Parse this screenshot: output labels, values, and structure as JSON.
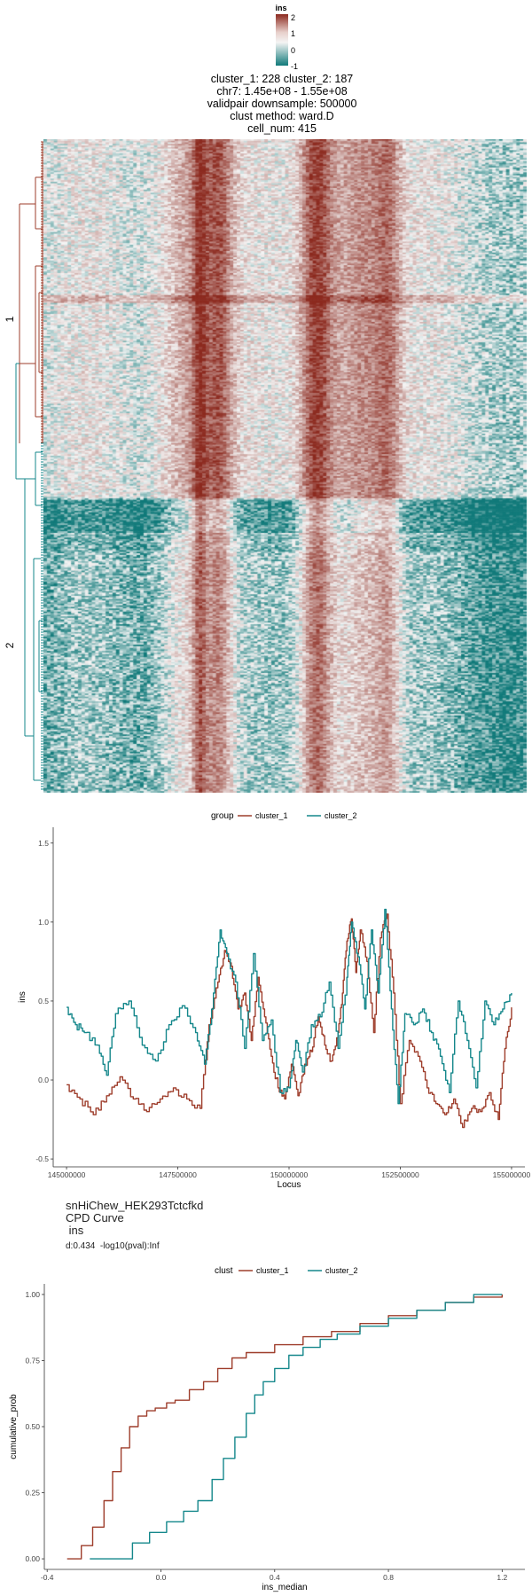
{
  "colors": {
    "cluster_1": "#9e3d2b",
    "cluster_2": "#14878b",
    "heat_low": "#117a7a",
    "heat_mid": "#f4f4f4",
    "heat_high": "#8c2a1f"
  },
  "heatmap": {
    "legend_title": "ins",
    "legend_ticks": [
      "2",
      "1",
      "0",
      "-1"
    ],
    "title_lines": [
      "cluster_1: 228 cluster_2: 187",
      "chr7: 1.45e+08 - 1.55e+08",
      "validpair downsample: 500000",
      "clust method: ward.D",
      "cell_num: 415"
    ],
    "row_groups": [
      "1",
      "2"
    ]
  },
  "chart_data": [
    {
      "type": "line",
      "xlabel": "Locus",
      "ylabel": "ins",
      "legend_title": "group",
      "legend_position": "top",
      "xlim": [
        144700000,
        155300000
      ],
      "ylim": [
        -0.55,
        1.6
      ],
      "x_ticks": [
        "145000000",
        "147500000",
        "150000000",
        "152500000",
        "155000000"
      ],
      "y_ticks": [
        "-0.5",
        "0.0",
        "0.5",
        "1.0",
        "1.5"
      ],
      "series": [
        {
          "name": "cluster_1",
          "x": [
            145000000,
            145300000,
            145600000,
            145900000,
            146200000,
            146500000,
            146800000,
            147100000,
            147400000,
            147700000,
            148000000,
            148200000,
            148400000,
            148550000,
            148700000,
            148850000,
            149000000,
            149150000,
            149300000,
            149450000,
            149600000,
            149750000,
            149900000,
            150050000,
            150200000,
            150350000,
            150500000,
            150650000,
            150800000,
            150950000,
            151100000,
            151200000,
            151300000,
            151400000,
            151500000,
            151600000,
            151750000,
            151900000,
            152050000,
            152200000,
            152350000,
            152500000,
            152700000,
            152900000,
            153100000,
            153300000,
            153500000,
            153700000,
            153900000,
            154100000,
            154300000,
            154500000,
            154700000,
            154850000,
            155000000
          ],
          "y": [
            -0.03,
            -0.12,
            -0.22,
            -0.1,
            0.02,
            -0.12,
            -0.2,
            -0.12,
            -0.05,
            -0.12,
            -0.18,
            0.35,
            0.62,
            0.82,
            0.72,
            0.45,
            0.55,
            0.25,
            0.65,
            0.4,
            0.15,
            -0.05,
            -0.12,
            0.1,
            -0.1,
            0.1,
            0.18,
            0.4,
            0.22,
            0.12,
            0.3,
            0.55,
            0.88,
            1.02,
            0.68,
            0.95,
            0.75,
            0.3,
            0.9,
            1.05,
            0.55,
            -0.15,
            0.25,
            0.15,
            -0.05,
            -0.15,
            -0.22,
            -0.12,
            -0.3,
            -0.18,
            -0.2,
            -0.08,
            -0.25,
            0.2,
            0.46
          ]
        },
        {
          "name": "cluster_2",
          "x": [
            145000000,
            145200000,
            145400000,
            145700000,
            145900000,
            146100000,
            146400000,
            146700000,
            147000000,
            147300000,
            147600000,
            147900000,
            148100000,
            148300000,
            148450000,
            148600000,
            148800000,
            149000000,
            149200000,
            149400000,
            149600000,
            149800000,
            150000000,
            150150000,
            150300000,
            150500000,
            150700000,
            150900000,
            151100000,
            151300000,
            151400000,
            151550000,
            151700000,
            151850000,
            152000000,
            152150000,
            152300000,
            152450000,
            152600000,
            152800000,
            153000000,
            153200000,
            153400000,
            153600000,
            153800000,
            154000000,
            154200000,
            154400000,
            154600000,
            154800000,
            155000000
          ],
          "y": [
            0.46,
            0.35,
            0.3,
            0.22,
            0.03,
            0.42,
            0.5,
            0.22,
            0.12,
            0.35,
            0.47,
            0.3,
            0.1,
            0.55,
            0.95,
            0.8,
            0.62,
            0.2,
            0.8,
            0.25,
            0.38,
            -0.08,
            -0.05,
            0.25,
            0.05,
            0.35,
            0.4,
            0.62,
            0.2,
            0.65,
            1.0,
            0.78,
            0.45,
            0.95,
            0.55,
            1.08,
            0.45,
            -0.15,
            0.42,
            0.35,
            0.45,
            0.3,
            0.15,
            -0.08,
            0.5,
            0.25,
            -0.05,
            0.5,
            0.35,
            0.45,
            0.55
          ]
        }
      ]
    },
    {
      "type": "line",
      "title": "snHiChew_HEK293Tctcfkd",
      "subtitle_lines": [
        "CPD Curve",
        " ins"
      ],
      "stats": "d:0.434  -log10(pval):Inf",
      "xlabel": "ins_median",
      "ylabel": "cumulative_prob",
      "legend_title": "clust",
      "legend_position": "top",
      "xlim": [
        -0.41,
        1.28
      ],
      "ylim": [
        -0.04,
        1.04
      ],
      "x_ticks": [
        "-0.4",
        "0.0",
        "0.4",
        "0.8",
        "1.2"
      ],
      "y_ticks": [
        "0.00",
        "0.25",
        "0.50",
        "0.75",
        "1.00"
      ],
      "series": [
        {
          "name": "cluster_1",
          "x": [
            -0.33,
            -0.28,
            -0.24,
            -0.2,
            -0.17,
            -0.14,
            -0.11,
            -0.08,
            -0.05,
            -0.02,
            0.02,
            0.05,
            0.1,
            0.15,
            0.2,
            0.25,
            0.3,
            0.4,
            0.5,
            0.6,
            0.7,
            0.8,
            0.9,
            1.0,
            1.1,
            1.2
          ],
          "y": [
            0.0,
            0.05,
            0.12,
            0.22,
            0.33,
            0.42,
            0.5,
            0.54,
            0.56,
            0.57,
            0.59,
            0.6,
            0.64,
            0.67,
            0.72,
            0.76,
            0.78,
            0.81,
            0.84,
            0.86,
            0.89,
            0.92,
            0.94,
            0.97,
            0.99,
            1.0
          ]
        },
        {
          "name": "cluster_2",
          "x": [
            -0.25,
            -0.16,
            -0.1,
            -0.04,
            0.02,
            0.08,
            0.13,
            0.18,
            0.22,
            0.26,
            0.3,
            0.33,
            0.36,
            0.4,
            0.45,
            0.5,
            0.56,
            0.62,
            0.7,
            0.8,
            0.9,
            1.0,
            1.1,
            1.2
          ],
          "y": [
            0.0,
            0.0,
            0.06,
            0.1,
            0.14,
            0.18,
            0.22,
            0.3,
            0.38,
            0.46,
            0.55,
            0.62,
            0.67,
            0.72,
            0.77,
            0.8,
            0.83,
            0.85,
            0.88,
            0.91,
            0.94,
            0.97,
            1.0,
            1.0
          ]
        }
      ]
    }
  ]
}
